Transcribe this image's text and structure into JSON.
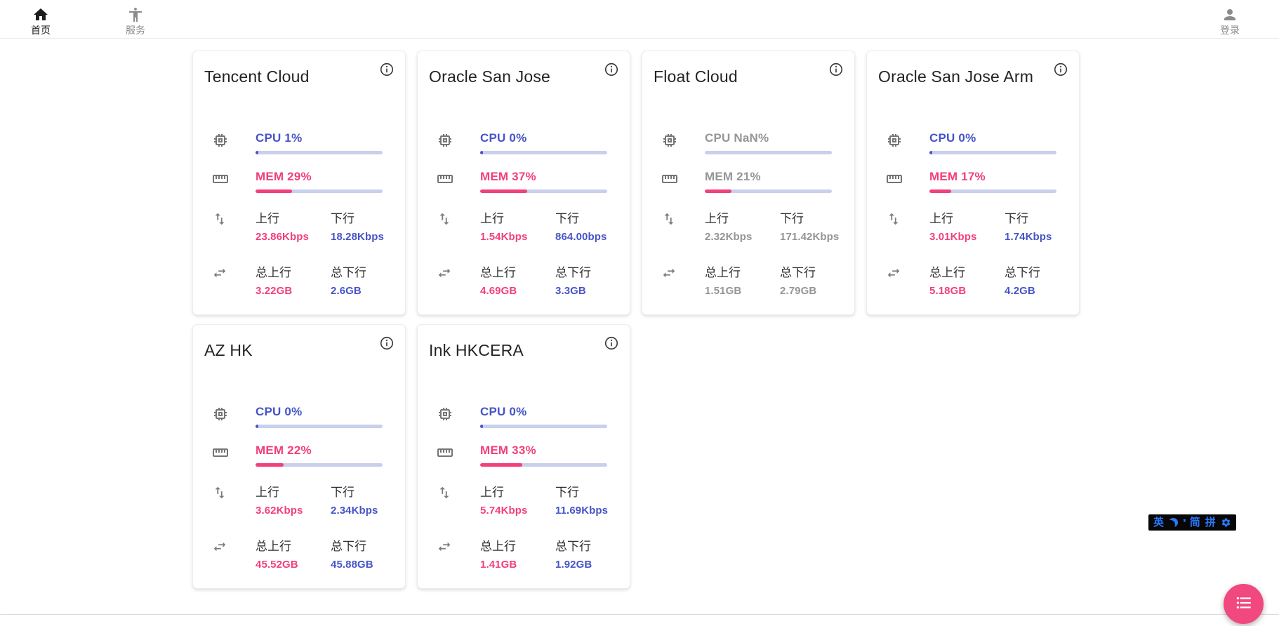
{
  "nav": {
    "home": {
      "label": "首页"
    },
    "services": {
      "label": "服务"
    },
    "login": {
      "label": "登录"
    }
  },
  "labels": {
    "up": "上行",
    "down": "下行",
    "total_up": "总上行",
    "total_down": "总下行"
  },
  "colors": {
    "cpu_blue": "#4655c6",
    "mem_pink": "#f1407a",
    "bar_track": "#c9cfec",
    "offline_gray": "#959595",
    "fab_pink": "#f1487f",
    "ime_blue": "#2979ff"
  },
  "servers": [
    {
      "name": "Tencent Cloud",
      "cpu_text": "CPU 1%",
      "cpu_pct": 1,
      "mem_text": "MEM 29%",
      "mem_pct": 29,
      "up": "23.86Kbps",
      "down": "18.28Kbps",
      "total_up": "3.22GB",
      "total_down": "2.6GB",
      "offline": false
    },
    {
      "name": "Oracle San Jose",
      "cpu_text": "CPU 0%",
      "cpu_pct": 0,
      "mem_text": "MEM 37%",
      "mem_pct": 37,
      "up": "1.54Kbps",
      "down": "864.00bps",
      "total_up": "4.69GB",
      "total_down": "3.3GB",
      "offline": false
    },
    {
      "name": "Float Cloud",
      "cpu_text": "CPU NaN%",
      "cpu_pct": null,
      "mem_text": "MEM 21%",
      "mem_pct": 21,
      "up": "2.32Kbps",
      "down": "171.42Kbps",
      "total_up": "1.51GB",
      "total_down": "2.79GB",
      "offline": true
    },
    {
      "name": "Oracle San Jose Arm",
      "cpu_text": "CPU 0%",
      "cpu_pct": 0,
      "mem_text": "MEM 17%",
      "mem_pct": 17,
      "up": "3.01Kbps",
      "down": "1.74Kbps",
      "total_up": "5.18GB",
      "total_down": "4.2GB",
      "offline": false
    },
    {
      "name": "AZ HK",
      "cpu_text": "CPU 0%",
      "cpu_pct": 0,
      "mem_text": "MEM 22%",
      "mem_pct": 22,
      "up": "3.62Kbps",
      "down": "2.34Kbps",
      "total_up": "45.52GB",
      "total_down": "45.88GB",
      "offline": false
    },
    {
      "name": "Ink HKCERA",
      "cpu_text": "CPU 0%",
      "cpu_pct": 0,
      "mem_text": "MEM 33%",
      "mem_pct": 33,
      "up": "5.74Kbps",
      "down": "11.69Kbps",
      "total_up": "1.41GB",
      "total_down": "1.92GB",
      "offline": false
    }
  ],
  "ime": {
    "english": "英",
    "punct": "’’",
    "simplified": "简",
    "pinyin": "拼"
  }
}
